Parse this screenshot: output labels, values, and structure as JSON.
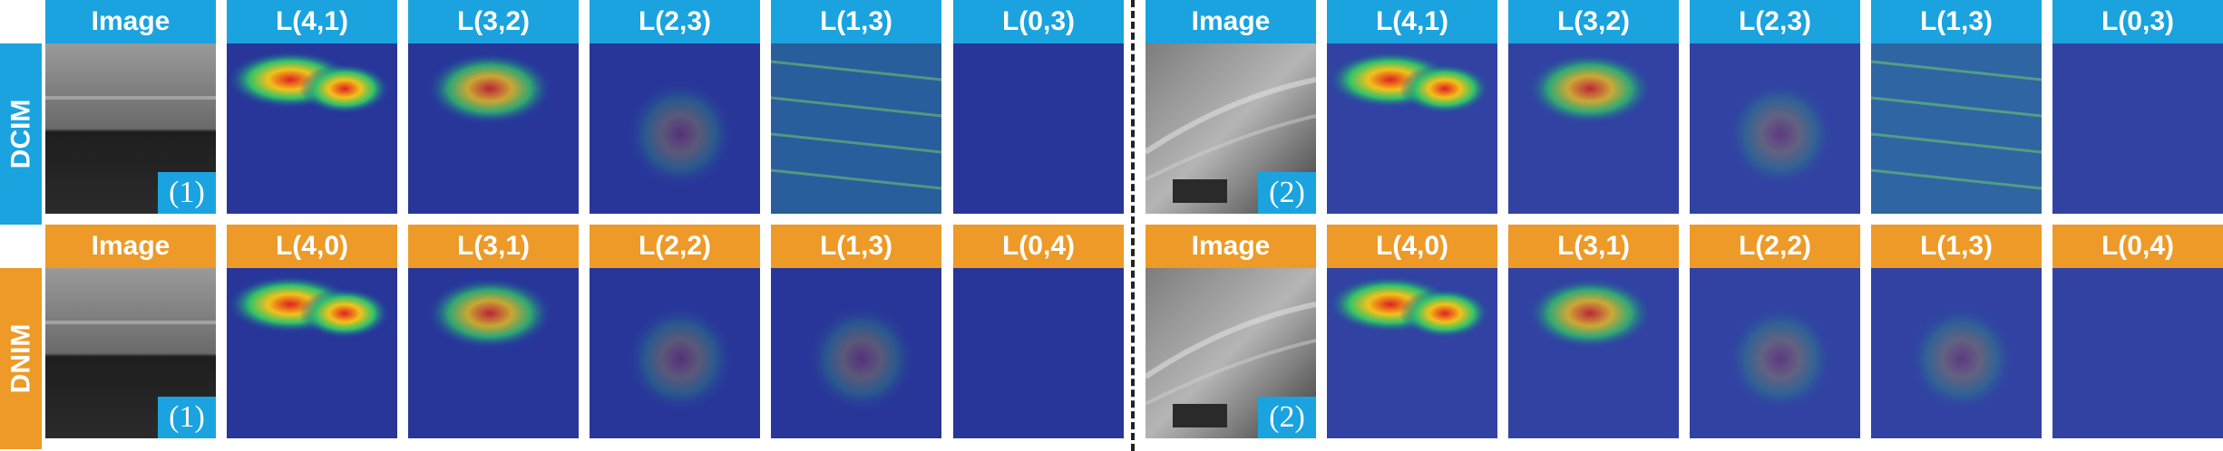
{
  "colors": {
    "dcim": "#1aa3df",
    "dnim": "#ee9a28"
  },
  "rows": [
    {
      "label": "DCIM",
      "color": "#1aa3df",
      "headers_left": [
        "Image",
        "L(4,1)",
        "L(3,2)",
        "L(2,3)",
        "L(1,3)",
        "L(0,3)"
      ],
      "headers_right": [
        "Image",
        "L(4,1)",
        "L(3,2)",
        "L(2,3)",
        "L(1,3)",
        "L(0,3)"
      ]
    },
    {
      "label": "DNIM",
      "color": "#ee9a28",
      "headers_left": [
        "Image",
        "L(4,0)",
        "L(3,1)",
        "L(2,2)",
        "L(1,3)",
        "L(0,4)"
      ],
      "headers_right": [
        "Image",
        "L(4,0)",
        "L(3,1)",
        "L(2,2)",
        "L(1,3)",
        "L(0,4)"
      ]
    }
  ],
  "badges": {
    "left": "(1)",
    "right": "(2)"
  }
}
